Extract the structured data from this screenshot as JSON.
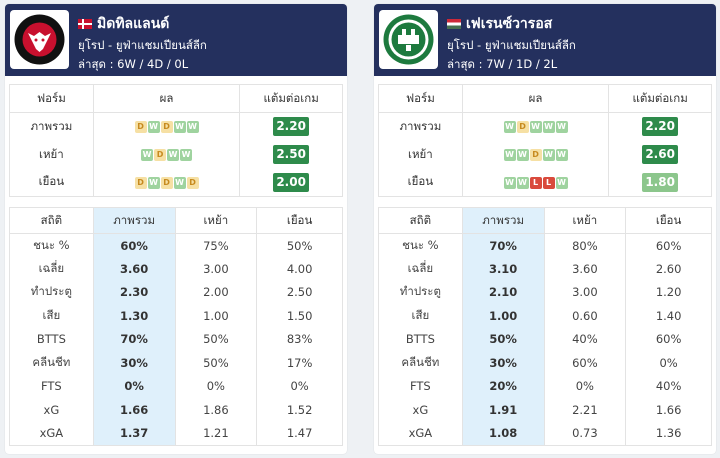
{
  "left": {
    "team_name": "มิดทิลแลนด์",
    "league": "ยุโรป - ยูฟ่าแชมเปียนส์ลีก",
    "recent": "ล่าสุด : 6W / 4D / 0L",
    "logo_text": "FC MIDTJYLLAND 1999",
    "form_header": {
      "form": "ฟอร์ม",
      "result": "ผล",
      "ppg": "แต้มต่อเกม"
    },
    "form_rows": [
      {
        "label": "ภาพรวม",
        "results": [
          "D",
          "W",
          "D",
          "W",
          "W"
        ],
        "ppg": "2.20",
        "shade": "dark"
      },
      {
        "label": "เหย้า",
        "results": [
          "W",
          "D",
          "W",
          "W"
        ],
        "ppg": "2.50",
        "shade": "dark"
      },
      {
        "label": "เยือน",
        "results": [
          "D",
          "W",
          "D",
          "W",
          "D"
        ],
        "ppg": "2.00",
        "shade": "dark"
      }
    ],
    "stats_header": {
      "stat": "สถิติ",
      "overall": "ภาพรวม",
      "home": "เหย้า",
      "away": "เยือน"
    },
    "stats_rows": [
      {
        "label": "ชนะ %",
        "overall": "60%",
        "home": "75%",
        "away": "50%"
      },
      {
        "label": "เฉลี่ย",
        "overall": "3.60",
        "home": "3.00",
        "away": "4.00"
      },
      {
        "label": "ทำประตู",
        "overall": "2.30",
        "home": "2.00",
        "away": "2.50"
      },
      {
        "label": "เสีย",
        "overall": "1.30",
        "home": "1.00",
        "away": "1.50"
      },
      {
        "label": "BTTS",
        "overall": "70%",
        "home": "50%",
        "away": "83%"
      },
      {
        "label": "คลีนชีท",
        "overall": "30%",
        "home": "50%",
        "away": "17%"
      },
      {
        "label": "FTS",
        "overall": "0%",
        "home": "0%",
        "away": "0%"
      },
      {
        "label": "xG",
        "overall": "1.66",
        "home": "1.86",
        "away": "1.52"
      },
      {
        "label": "xGA",
        "overall": "1.37",
        "home": "1.21",
        "away": "1.47"
      }
    ]
  },
  "right": {
    "team_name": "เฟเรนซ์วารอส",
    "league": "ยุโรป - ยูฟ่าแชมเปียนส์ลีก",
    "recent": "ล่าสุด : 7W / 1D / 2L",
    "logo_text": "FERENCVÁROSI TORNA CLUB 1899 BPEST.IX.K.",
    "form_header": {
      "form": "ฟอร์ม",
      "result": "ผล",
      "ppg": "แต้มต่อเกม"
    },
    "form_rows": [
      {
        "label": "ภาพรวม",
        "results": [
          "W",
          "D",
          "W",
          "W",
          "W"
        ],
        "ppg": "2.20",
        "shade": "dark"
      },
      {
        "label": "เหย้า",
        "results": [
          "W",
          "W",
          "D",
          "W",
          "W"
        ],
        "ppg": "2.60",
        "shade": "dark"
      },
      {
        "label": "เยือน",
        "results": [
          "W",
          "W",
          "L",
          "L",
          "W"
        ],
        "ppg": "1.80",
        "shade": "light"
      }
    ],
    "stats_header": {
      "stat": "สถิติ",
      "overall": "ภาพรวม",
      "home": "เหย้า",
      "away": "เยือน"
    },
    "stats_rows": [
      {
        "label": "ชนะ %",
        "overall": "70%",
        "home": "80%",
        "away": "60%"
      },
      {
        "label": "เฉลี่ย",
        "overall": "3.10",
        "home": "3.60",
        "away": "2.60"
      },
      {
        "label": "ทำประตู",
        "overall": "2.10",
        "home": "3.00",
        "away": "1.20"
      },
      {
        "label": "เสีย",
        "overall": "1.00",
        "home": "0.60",
        "away": "1.40"
      },
      {
        "label": "BTTS",
        "overall": "50%",
        "home": "40%",
        "away": "60%"
      },
      {
        "label": "คลีนชีท",
        "overall": "30%",
        "home": "60%",
        "away": "0%"
      },
      {
        "label": "FTS",
        "overall": "20%",
        "home": "0%",
        "away": "40%"
      },
      {
        "label": "xG",
        "overall": "1.91",
        "home": "2.21",
        "away": "1.66"
      },
      {
        "label": "xGA",
        "overall": "1.08",
        "home": "0.73",
        "away": "1.36"
      }
    ]
  },
  "colors": {
    "header_bg": "#24305e",
    "win": "#9fd39f",
    "draw": "#f6e0a4",
    "loss": "#d94a3c",
    "ppg_dark": "#2e8b4b",
    "ppg_light": "#8cc68c",
    "highlight": "#dff0fb"
  }
}
